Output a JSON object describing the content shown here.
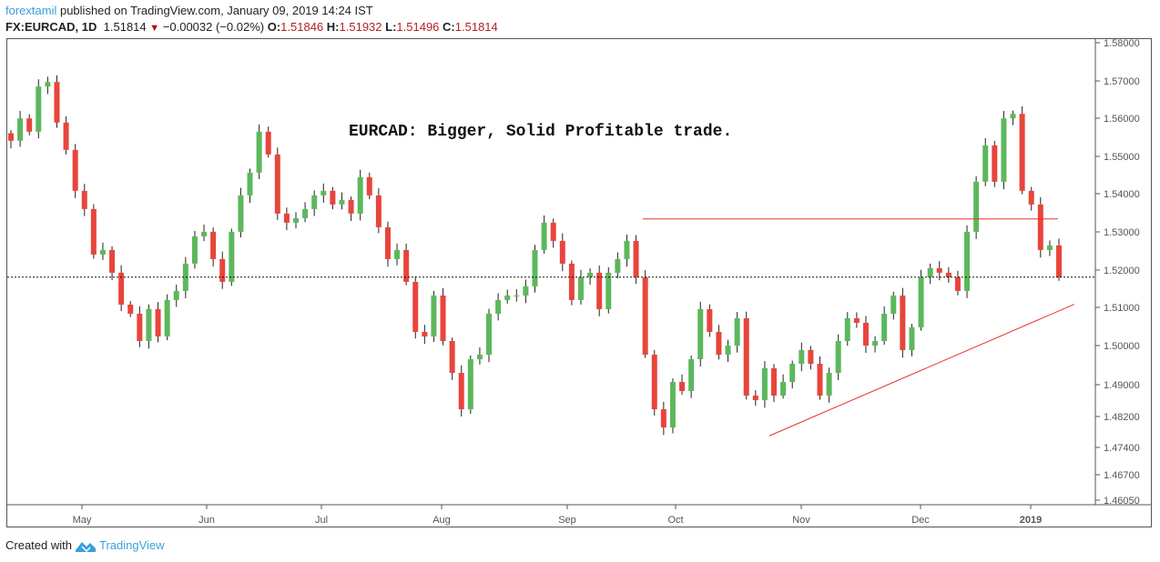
{
  "header": {
    "user": "forextamil",
    "published": " published on TradingView.com, January 09, 2019 14:24 IST",
    "symbol": "FX:EURCAD, 1D",
    "last": "1.51814",
    "change": "−0.00032 (−0.02%)",
    "o_label": "O:",
    "o": "1.51846",
    "h_label": "H:",
    "h": "1.51932",
    "l_label": "L:",
    "l": "1.51496",
    "c_label": "C:",
    "c": "1.51814"
  },
  "footer": {
    "created": "Created with",
    "brand": "TradingView"
  },
  "chart_data": {
    "type": "candlestick",
    "title": "EURCAD: Bigger, Solid Profitable trade.",
    "ylim": [
      1.4605,
      1.58
    ],
    "yticks": [
      "1.58000",
      "1.57000",
      "1.56000",
      "1.55000",
      "1.54000",
      "1.53000",
      "1.52000",
      "1.51000",
      "1.50000",
      "1.49000",
      "1.48200",
      "1.47400",
      "1.46700",
      "1.46050"
    ],
    "xticks": [
      "May",
      "Jun",
      "Jul",
      "Aug",
      "Sep",
      "Oct",
      "Nov",
      "Dec",
      "2019"
    ],
    "closes": [
      1.5541,
      1.56,
      1.5565,
      1.5684,
      1.5696,
      1.5589,
      1.5517,
      1.5409,
      1.5361,
      1.5241,
      1.5253,
      1.5193,
      1.5109,
      1.5085,
      1.5013,
      1.5097,
      1.5025,
      1.5121,
      1.5145,
      1.5217,
      1.5289,
      1.5301,
      1.5229,
      1.5169,
      1.5301,
      1.5397,
      1.5457,
      1.5565,
      1.5505,
      1.5349,
      1.5325,
      1.5337,
      1.5361,
      1.5397,
      1.5409,
      1.5373,
      1.5385,
      1.5349,
      1.5445,
      1.5397,
      1.5313,
      1.5229,
      1.5253,
      1.5169,
      1.5037,
      1.5025,
      1.5133,
      1.5013,
      1.4929,
      1.4833,
      1.4965,
      1.4977,
      1.5085,
      1.5121,
      1.5133,
      1.5133,
      1.5157,
      1.5253,
      1.5325,
      1.5277,
      1.5217,
      1.5121,
      1.5181,
      1.5193,
      1.5097,
      1.5193,
      1.5229,
      1.5277,
      1.5181,
      1.4977,
      1.4833,
      1.4785,
      1.4905,
      1.4881,
      1.4965,
      1.5097,
      1.5037,
      1.4977,
      1.5001,
      1.5073,
      1.4869,
      1.4857,
      1.4941,
      1.4869,
      1.4905,
      1.4953,
      1.4989,
      1.4953,
      1.4869,
      1.4929,
      1.5013,
      1.5073,
      1.5061,
      1.5001,
      1.5013,
      1.5085,
      1.5133,
      1.4989,
      1.5049,
      1.5181,
      1.5205,
      1.5193,
      1.5181,
      1.5145,
      1.5301,
      1.5433,
      1.5529,
      1.5433,
      1.56,
      1.5612,
      1.5409,
      1.5373,
      1.5253,
      1.5265,
      1.5181
    ],
    "current_price": 1.51814,
    "resistance_line": 1.5335,
    "trend_line": [
      1.4763,
      1.511
    ],
    "colors": {
      "up": "#5cb85c",
      "down": "#e8453c",
      "line": "#e8322a"
    }
  }
}
